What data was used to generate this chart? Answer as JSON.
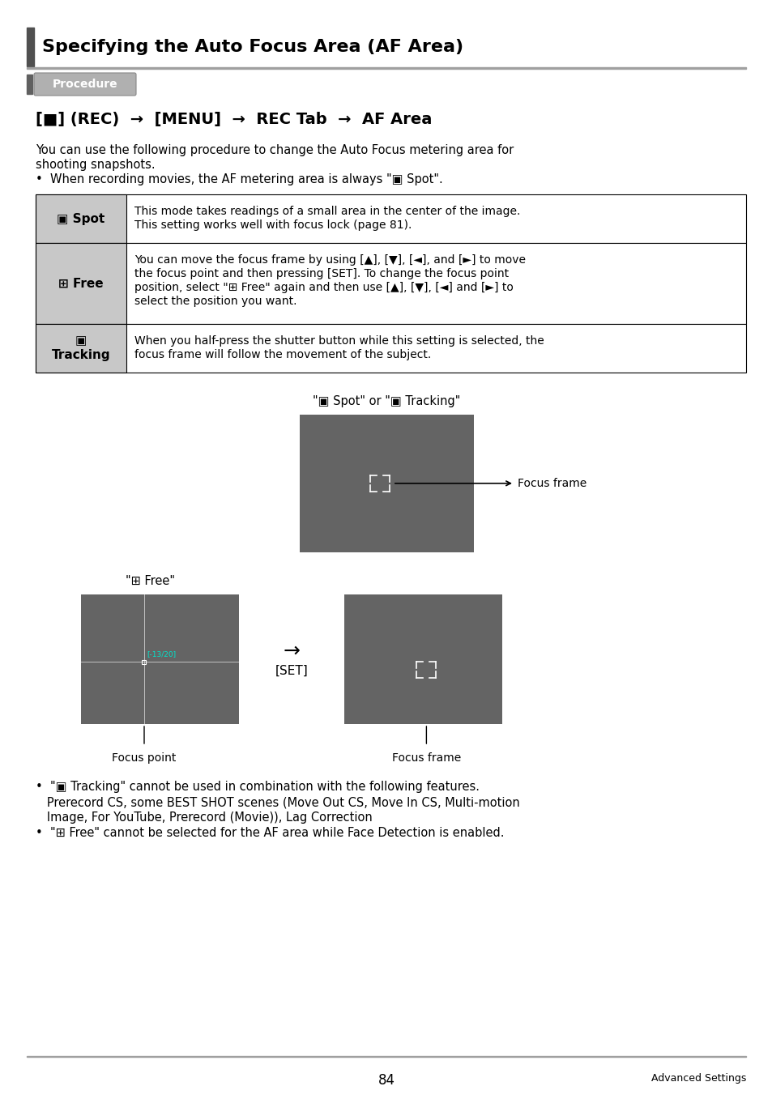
{
  "title": "Specifying the Auto Focus Area (AF Area)",
  "procedure_label": "Procedure",
  "nav_text": "[■] (REC)  →  [MENU]  →  REC Tab  →  AF Area",
  "intro_line1": "You can use the following procedure to change the Auto Focus metering area for",
  "intro_line2": "shooting snapshots.",
  "intro_bullet": "•  When recording movies, the AF metering area is always \"▣ Spot\".",
  "table_rows": [
    {
      "label1": "▣ Spot",
      "label2": "",
      "desc": "This mode takes readings of a small area in the center of the image.\nThis setting works well with focus lock (page 81)."
    },
    {
      "label1": "⊞ Free",
      "label2": "",
      "desc": "You can move the focus frame by using [▲], [▼], [◄], and [►] to move\nthe focus point and then pressing [SET]. To change the focus point\nposition, select \"⊞ Free\" again and then use [▲], [▼], [◄] and [►] to\nselect the position you want."
    },
    {
      "label1": "▣",
      "label2": "Tracking",
      "desc": "When you half-press the shutter button while this setting is selected, the\nfocus frame will follow the movement of the subject."
    }
  ],
  "caption_spot_tracking": "\"▣ Spot\" or \"▣ Tracking\"",
  "caption_free": "\"⊞ Free\"",
  "label_focus_frame_top": "Focus frame",
  "label_set_arrow": "→",
  "label_set": "[SET]",
  "label_focus_point": "Focus point",
  "label_focus_frame_bot": "Focus frame",
  "crosshair_label": "[-13/20]",
  "bullet1_line1": "•  \"▣ Tracking\" cannot be used in combination with the following features.",
  "bullet1_line2": "   Prerecord CS, some BEST SHOT scenes (Move Out CS, Move In CS, Multi-motion",
  "bullet1_line3": "   Image, For YouTube, Prerecord (Movie)), Lag Correction",
  "bullet2": "•  \"⊞ Free\" cannot be selected for the AF area while Face Detection is enabled.",
  "page_num": "84",
  "page_label": "Advanced Settings",
  "bg_color": "#ffffff",
  "dark_rect_color": "#646464",
  "table_col1_bg": "#c8c8c8",
  "title_accent_color": "#505050",
  "hr_color": "#a0a0a0",
  "proc_bg": "#b0b0b0",
  "proc_accent": "#606060",
  "crosshair_color": "#00e5cc",
  "white": "#ffffff",
  "black": "#000000"
}
